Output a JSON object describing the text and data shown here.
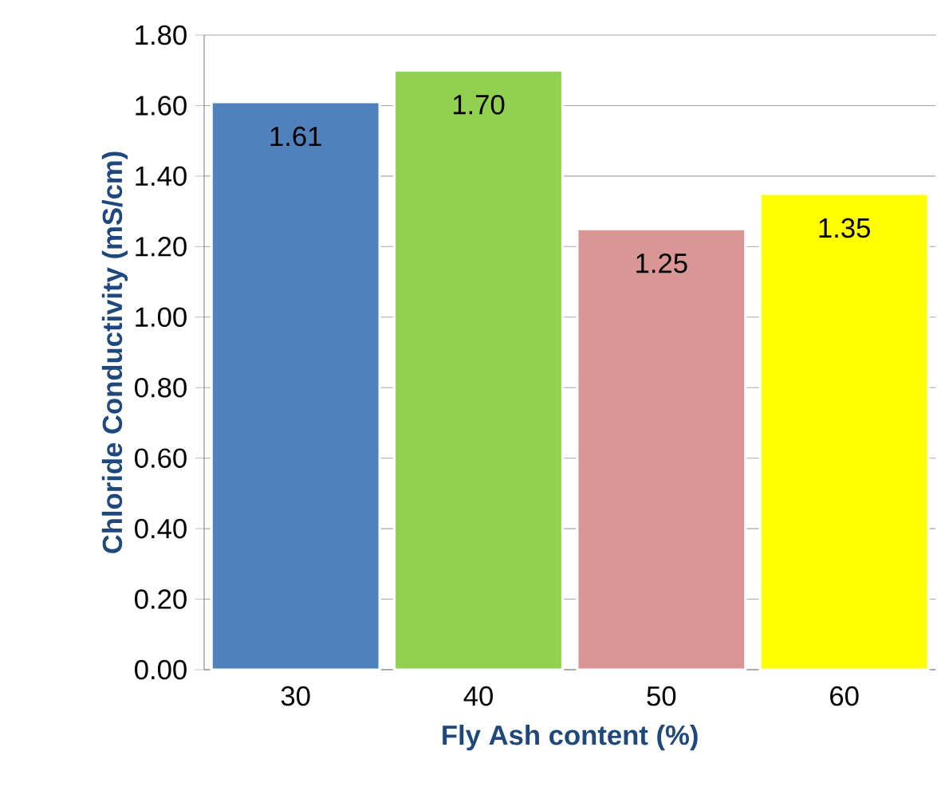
{
  "chart_data": {
    "type": "bar",
    "xlabel": "Fly Ash content (%)",
    "ylabel": "Chloride Conductivity (mS/cm)",
    "categories": [
      "30",
      "40",
      "50",
      "60"
    ],
    "values": [
      1.61,
      1.7,
      1.25,
      1.35
    ],
    "colors": [
      "#4f81bd",
      "#92d050",
      "#d99694",
      "#ffff00"
    ],
    "value_labels": [
      "1.61",
      "1.70",
      "1.25",
      "1.35"
    ],
    "ylim": [
      0,
      1.8
    ],
    "yticks": [
      {
        "value": 0,
        "label": "0.00"
      },
      {
        "value": 0.2,
        "label": "0.20"
      },
      {
        "value": 0.4,
        "label": "0.40"
      },
      {
        "value": 0.6,
        "label": "0.60"
      },
      {
        "value": 0.8,
        "label": "0.80"
      },
      {
        "value": 1.0,
        "label": "1.00"
      },
      {
        "value": 1.2,
        "label": "1.20"
      },
      {
        "value": 1.4,
        "label": "1.40"
      },
      {
        "value": 1.6,
        "label": "1.60"
      },
      {
        "value": 1.8,
        "label": "1.80"
      }
    ],
    "grid": "y"
  }
}
